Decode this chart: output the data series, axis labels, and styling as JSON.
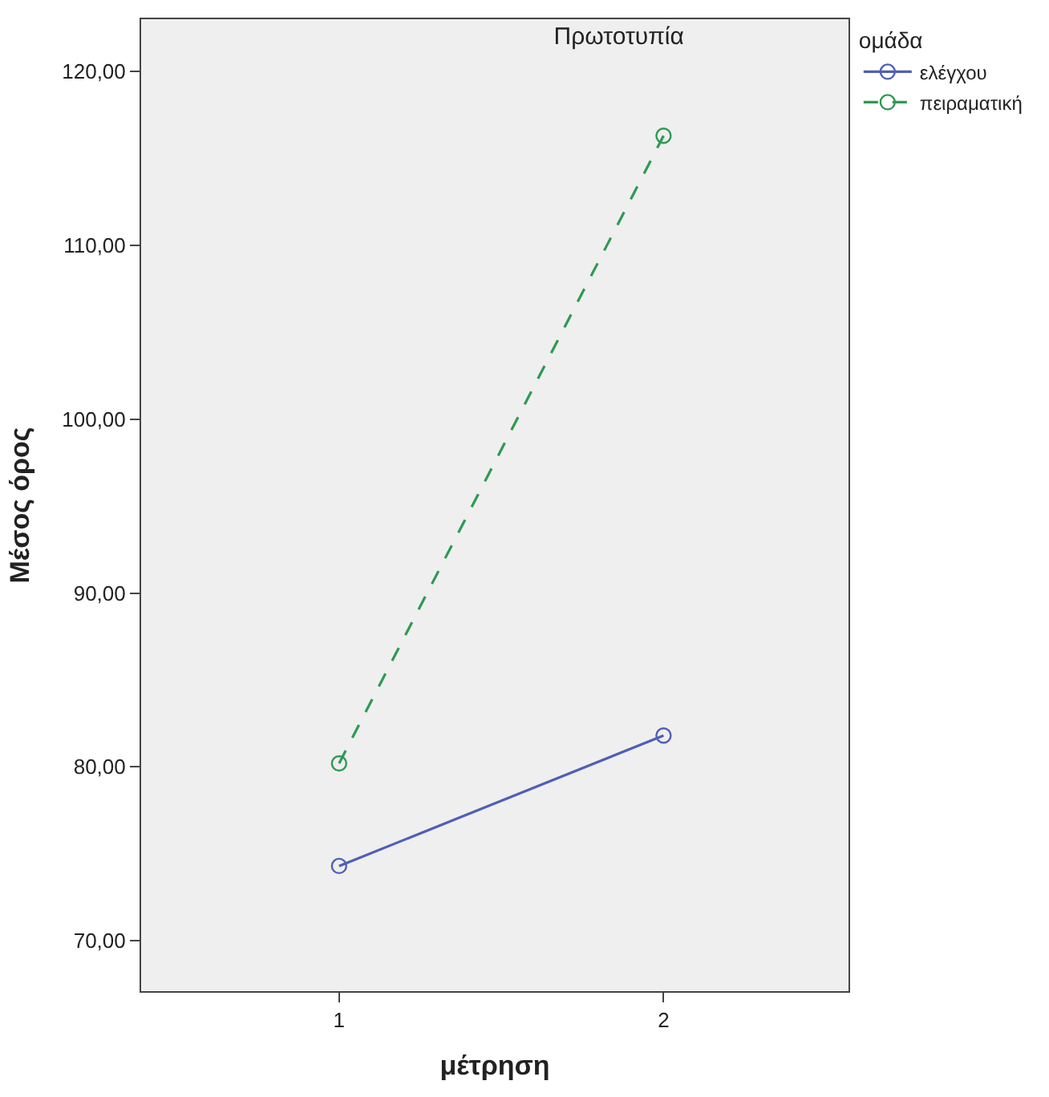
{
  "chart_data": {
    "type": "line",
    "title": "Πρωτοτυπία",
    "xlabel": "μέτρηση",
    "ylabel": "Μέσος όρος",
    "legend_title": "ομάδα",
    "categories": [
      "1",
      "2"
    ],
    "series": [
      {
        "name": "ελέγχου",
        "color": "#4f5fb5",
        "values": [
          74.3,
          81.8
        ],
        "line_style": "solid"
      },
      {
        "name": "πειραματική",
        "color": "#2e9a52",
        "values": [
          80.2,
          116.3
        ],
        "line_style": "dashed"
      }
    ],
    "ylim": [
      67.1,
      123
    ],
    "yticks": [
      {
        "value": 70,
        "label": "70,00"
      },
      {
        "value": 80,
        "label": "80,00"
      },
      {
        "value": 90,
        "label": "90,00"
      },
      {
        "value": 100,
        "label": "100,00"
      },
      {
        "value": 110,
        "label": "110,00"
      },
      {
        "value": 120,
        "label": "120,00"
      }
    ],
    "marker": "circle",
    "grid": false,
    "legend": "top right"
  }
}
